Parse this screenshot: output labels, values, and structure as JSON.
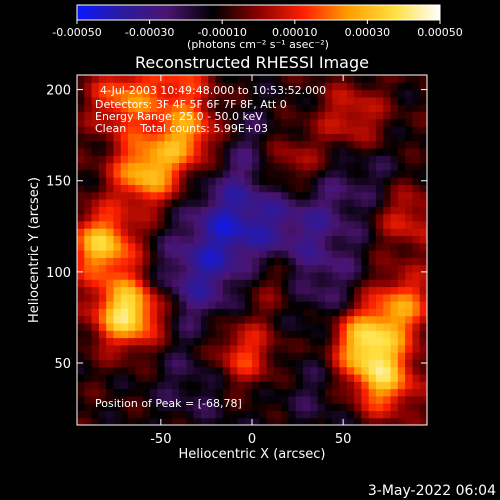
{
  "chart_data": {
    "type": "heatmap",
    "title": "Reconstructed RHESSI Image",
    "xlabel": "Heliocentric X (arcsec)",
    "ylabel": "Heliocentric Y (arcsec)",
    "xlim": [
      -96,
      96
    ],
    "ylim": [
      16,
      208
    ],
    "x_ticks": [
      -50,
      0,
      50
    ],
    "y_ticks": [
      50,
      100,
      150,
      200
    ],
    "colorbar": {
      "label": "(photons cm⁻² s⁻¹ asec⁻²)",
      "range": [
        -0.0005,
        0.0005
      ],
      "tick_labels": [
        "-0.00050",
        "-0.00030",
        "-0.00010",
        "0.00010",
        "0.00030",
        "0.00050"
      ],
      "colors": [
        "#0a18ff",
        "#2a1aa0",
        "#4a1470",
        "#000000",
        "#8a0000",
        "#ff2000",
        "#ffa000",
        "#ffe040",
        "#ffffff"
      ]
    },
    "info_lines": [
      "4-Jul-2003 10:49:48.000 to 10:53:52.000",
      "Detectors: 3F 4F 5F 6F 7F 8F, Att 0",
      "Energy Range: 25.0 - 50.0 keV",
      "Clean    Total counts: 5.99E+03"
    ],
    "peak_label": "Position of Peak = [-68,78]",
    "peak": [
      -68,
      78
    ],
    "sources": [
      {
        "x": -68,
        "y": 78,
        "peak": 0.00052
      },
      {
        "x": -82,
        "y": 115,
        "peak": 0.00042
      },
      {
        "x": -58,
        "y": 155,
        "peak": 0.0004
      },
      {
        "x": -35,
        "y": 175,
        "peak": 0.00034
      },
      {
        "x": -70,
        "y": 195,
        "peak": 0.0003
      },
      {
        "x": 62,
        "y": 62,
        "peak": 0.00044
      },
      {
        "x": 72,
        "y": 40,
        "peak": 0.00036
      },
      {
        "x": 82,
        "y": 82,
        "peak": 0.0003
      },
      {
        "x": 20,
        "y": 160,
        "peak": 0.00022
      },
      {
        "x": 55,
        "y": 185,
        "peak": 0.0002
      },
      {
        "x": -5,
        "y": 55,
        "peak": 0.00026
      },
      {
        "x": 85,
        "y": 130,
        "peak": 0.0002
      },
      {
        "x": 10,
        "y": 95,
        "peak": 0.00014
      },
      {
        "x": -40,
        "y": 205,
        "peak": 0.0002
      }
    ],
    "troughs": [
      {
        "x": -10,
        "y": 125,
        "depth": -0.00026
      },
      {
        "x": -30,
        "y": 95,
        "depth": -0.0002
      },
      {
        "x": 30,
        "y": 125,
        "depth": -0.00016
      },
      {
        "x": 40,
        "y": 90,
        "depth": -0.00012
      },
      {
        "x": 0,
        "y": 165,
        "depth": -0.00014
      },
      {
        "x": 60,
        "y": 150,
        "depth": -0.0001
      },
      {
        "x": -30,
        "y": 40,
        "depth": -0.0001
      },
      {
        "x": 35,
        "y": 35,
        "depth": -8e-05
      }
    ]
  },
  "footer": {
    "timestamp": "3-May-2022 06:04"
  }
}
